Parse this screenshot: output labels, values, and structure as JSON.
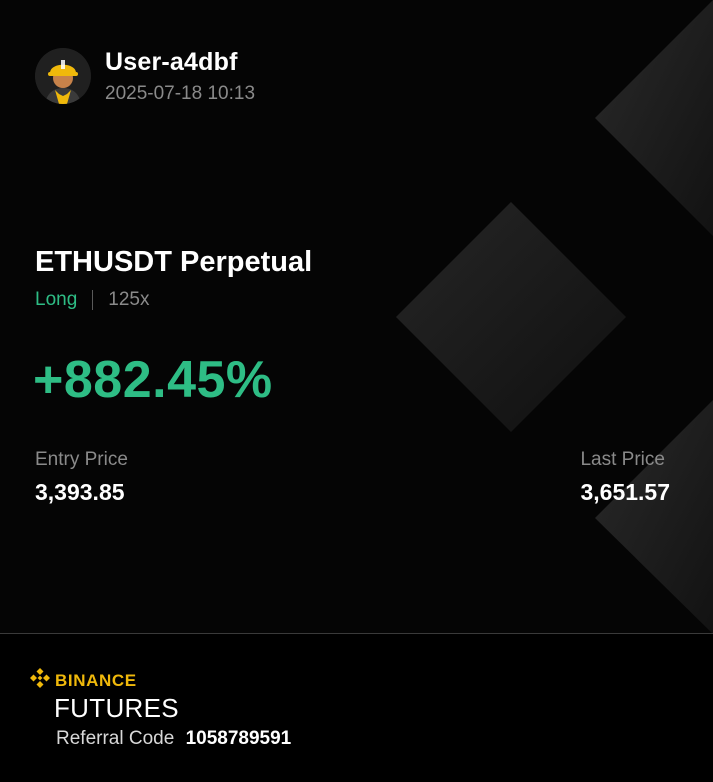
{
  "header": {
    "username": "User-a4dbf",
    "timestamp": "2025-07-18 10:13"
  },
  "position": {
    "symbol": "ETHUSDT Perpetual",
    "side": "Long",
    "leverage": "125x",
    "roi": "+882.45%",
    "entry_price_label": "Entry Price",
    "entry_price": "3,393.85",
    "last_price_label": "Last Price",
    "last_price": "3,651.57"
  },
  "footer": {
    "brand_top": "BINANCE",
    "brand_bottom": "FUTURES",
    "referral_label": "Referral Code",
    "referral_code": "1058789591"
  },
  "colors": {
    "background": "#050505",
    "profit_green": "#2ebd85",
    "brand_yellow": "#f0b90b",
    "muted_text": "#8a8a8a"
  },
  "icons": {
    "avatar": "construction-worker-avatar-icon",
    "brand_logo": "binance-logo-icon"
  }
}
